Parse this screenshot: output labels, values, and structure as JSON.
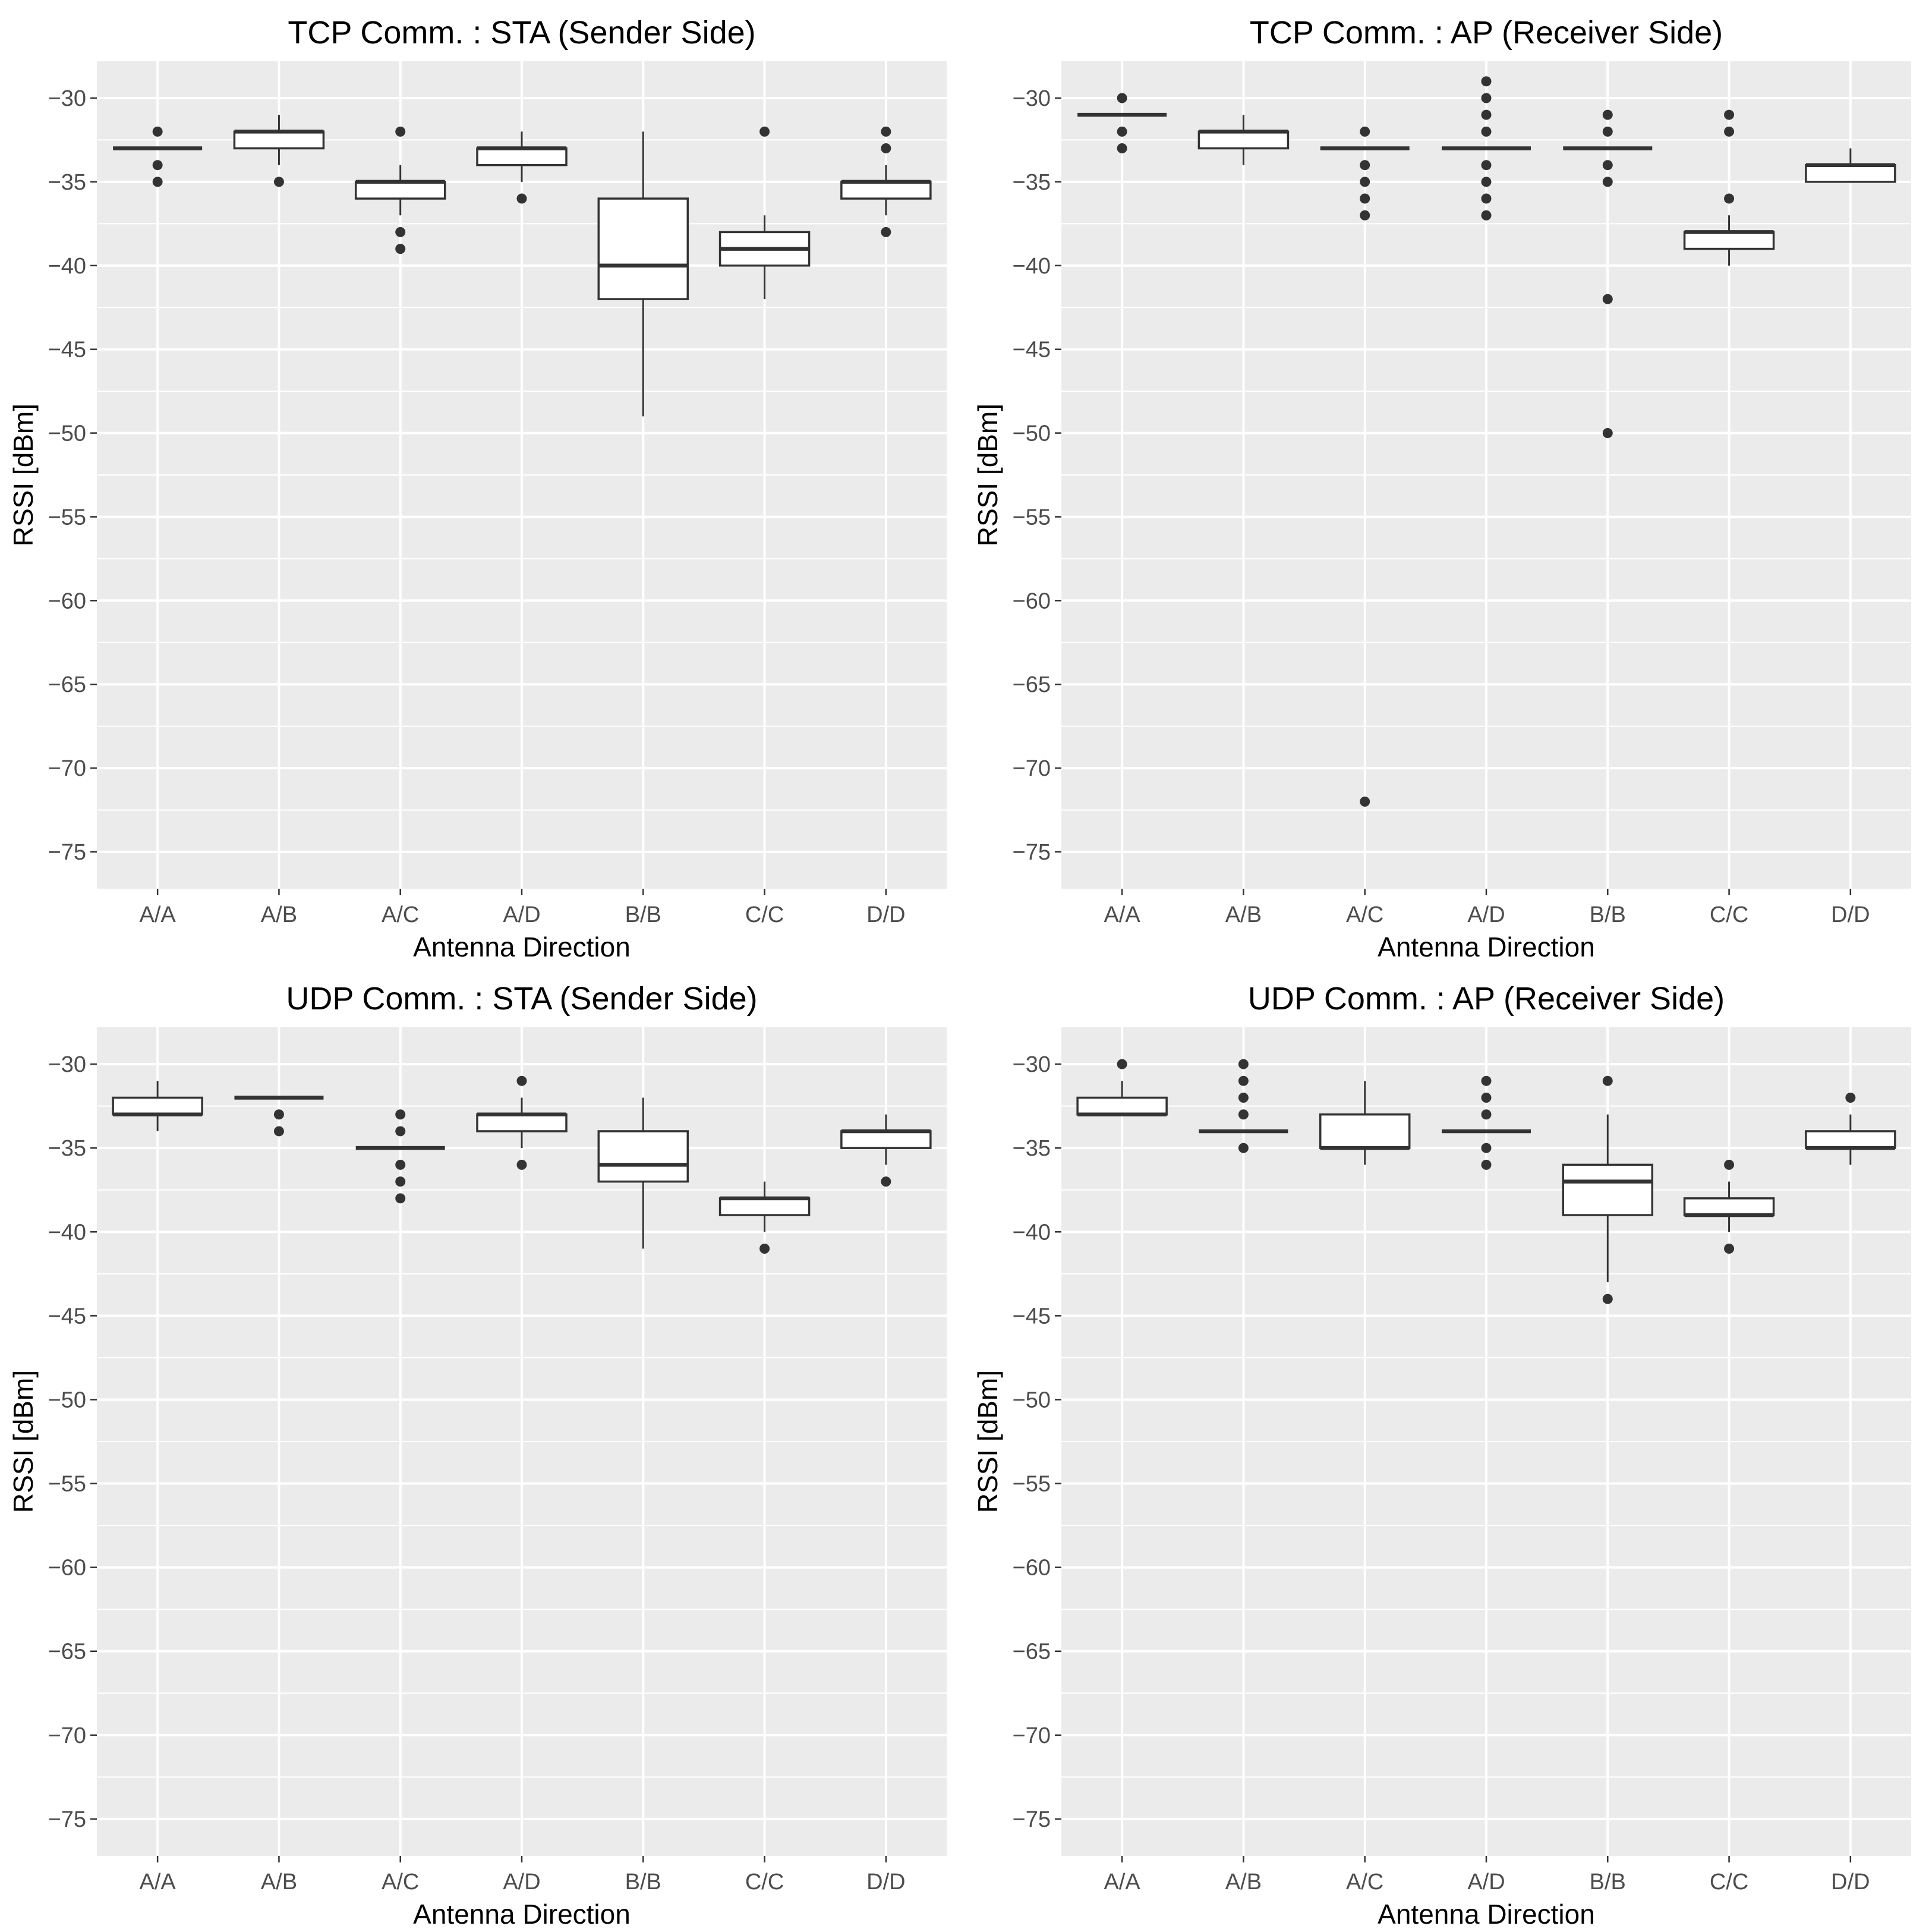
{
  "chart_data": [
    {
      "type": "boxplot",
      "title": "TCP Comm. : STA (Sender Side)",
      "xlabel": "Antenna Direction",
      "ylabel": "RSSI [dBm]",
      "ylim": [
        -77.2,
        -27.8
      ],
      "yticks": [
        -30,
        -35,
        -40,
        -45,
        -50,
        -55,
        -60,
        -65,
        -70,
        -75
      ],
      "ytick_labels": [
        "−30",
        "−35",
        "−40",
        "−45",
        "−50",
        "−55",
        "−60",
        "−65",
        "−70",
        "−75"
      ],
      "categories": [
        "A/A",
        "A/B",
        "A/C",
        "A/D",
        "B/B",
        "C/C",
        "D/D"
      ],
      "boxes": [
        {
          "q1": -33,
          "median": -33,
          "q3": -33,
          "whisker_low": -33,
          "whisker_high": -33,
          "outliers": [
            -32,
            -34,
            -35
          ]
        },
        {
          "q1": -33,
          "median": -32,
          "q3": -32,
          "whisker_low": -34,
          "whisker_high": -31,
          "outliers": [
            -35
          ]
        },
        {
          "q1": -36,
          "median": -35,
          "q3": -35,
          "whisker_low": -37,
          "whisker_high": -34,
          "outliers": [
            -32,
            -38,
            -39
          ]
        },
        {
          "q1": -34,
          "median": -33,
          "q3": -33,
          "whisker_low": -35,
          "whisker_high": -32,
          "outliers": [
            -36
          ]
        },
        {
          "q1": -42,
          "median": -40,
          "q3": -36,
          "whisker_low": -49,
          "whisker_high": -32,
          "outliers": []
        },
        {
          "q1": -40,
          "median": -39,
          "q3": -38,
          "whisker_low": -42,
          "whisker_high": -37,
          "outliers": [
            -32
          ]
        },
        {
          "q1": -36,
          "median": -35,
          "q3": -35,
          "whisker_low": -37,
          "whisker_high": -34,
          "outliers": [
            -32,
            -33,
            -38
          ]
        }
      ]
    },
    {
      "type": "boxplot",
      "title": "TCP Comm. : AP (Receiver Side)",
      "xlabel": "Antenna Direction",
      "ylabel": "RSSI [dBm]",
      "ylim": [
        -77.2,
        -27.8
      ],
      "yticks": [
        -30,
        -35,
        -40,
        -45,
        -50,
        -55,
        -60,
        -65,
        -70,
        -75
      ],
      "ytick_labels": [
        "−30",
        "−35",
        "−40",
        "−45",
        "−50",
        "−55",
        "−60",
        "−65",
        "−70",
        "−75"
      ],
      "categories": [
        "A/A",
        "A/B",
        "A/C",
        "A/D",
        "B/B",
        "C/C",
        "D/D"
      ],
      "boxes": [
        {
          "q1": -31,
          "median": -31,
          "q3": -31,
          "whisker_low": -31,
          "whisker_high": -31,
          "outliers": [
            -30,
            -32,
            -33
          ]
        },
        {
          "q1": -33,
          "median": -32,
          "q3": -32,
          "whisker_low": -34,
          "whisker_high": -31,
          "outliers": []
        },
        {
          "q1": -33,
          "median": -33,
          "q3": -33,
          "whisker_low": -33,
          "whisker_high": -33,
          "outliers": [
            -32,
            -34,
            -35,
            -36,
            -37,
            -72
          ]
        },
        {
          "q1": -33,
          "median": -33,
          "q3": -33,
          "whisker_low": -33,
          "whisker_high": -33,
          "outliers": [
            -29,
            -30,
            -31,
            -32,
            -34,
            -35,
            -36,
            -37
          ]
        },
        {
          "q1": -33,
          "median": -33,
          "q3": -33,
          "whisker_low": -33,
          "whisker_high": -33,
          "outliers": [
            -31,
            -32,
            -34,
            -35,
            -42,
            -50
          ]
        },
        {
          "q1": -39,
          "median": -38,
          "q3": -38,
          "whisker_low": -40,
          "whisker_high": -37,
          "outliers": [
            -31,
            -32,
            -36
          ]
        },
        {
          "q1": -35,
          "median": -34,
          "q3": -34,
          "whisker_low": -35,
          "whisker_high": -33,
          "outliers": []
        }
      ]
    },
    {
      "type": "boxplot",
      "title": "UDP Comm. : STA (Sender Side)",
      "xlabel": "Antenna Direction",
      "ylabel": "RSSI [dBm]",
      "ylim": [
        -77.2,
        -27.8
      ],
      "yticks": [
        -30,
        -35,
        -40,
        -45,
        -50,
        -55,
        -60,
        -65,
        -70,
        -75
      ],
      "ytick_labels": [
        "−30",
        "−35",
        "−40",
        "−45",
        "−50",
        "−55",
        "−60",
        "−65",
        "−70",
        "−75"
      ],
      "categories": [
        "A/A",
        "A/B",
        "A/C",
        "A/D",
        "B/B",
        "C/C",
        "D/D"
      ],
      "boxes": [
        {
          "q1": -33,
          "median": -33,
          "q3": -32,
          "whisker_low": -34,
          "whisker_high": -31,
          "outliers": []
        },
        {
          "q1": -32,
          "median": -32,
          "q3": -32,
          "whisker_low": -32,
          "whisker_high": -32,
          "outliers": [
            -33,
            -34
          ]
        },
        {
          "q1": -35,
          "median": -35,
          "q3": -35,
          "whisker_low": -35,
          "whisker_high": -35,
          "outliers": [
            -33,
            -34,
            -36,
            -37,
            -38
          ]
        },
        {
          "q1": -34,
          "median": -33,
          "q3": -33,
          "whisker_low": -35,
          "whisker_high": -32,
          "outliers": [
            -31,
            -36
          ]
        },
        {
          "q1": -37,
          "median": -36,
          "q3": -34,
          "whisker_low": -41,
          "whisker_high": -32,
          "outliers": []
        },
        {
          "q1": -39,
          "median": -38,
          "q3": -38,
          "whisker_low": -40,
          "whisker_high": -37,
          "outliers": [
            -41
          ]
        },
        {
          "q1": -35,
          "median": -34,
          "q3": -34,
          "whisker_low": -36,
          "whisker_high": -33,
          "outliers": [
            -37
          ]
        }
      ]
    },
    {
      "type": "boxplot",
      "title": "UDP Comm. : AP (Receiver Side)",
      "xlabel": "Antenna Direction",
      "ylabel": "RSSI [dBm]",
      "ylim": [
        -77.2,
        -27.8
      ],
      "yticks": [
        -30,
        -35,
        -40,
        -45,
        -50,
        -55,
        -60,
        -65,
        -70,
        -75
      ],
      "ytick_labels": [
        "−30",
        "−35",
        "−40",
        "−45",
        "−50",
        "−55",
        "−60",
        "−65",
        "−70",
        "−75"
      ],
      "categories": [
        "A/A",
        "A/B",
        "A/C",
        "A/D",
        "B/B",
        "C/C",
        "D/D"
      ],
      "boxes": [
        {
          "q1": -33,
          "median": -33,
          "q3": -32,
          "whisker_low": -33,
          "whisker_high": -31,
          "outliers": [
            -30
          ]
        },
        {
          "q1": -34,
          "median": -34,
          "q3": -34,
          "whisker_low": -34,
          "whisker_high": -34,
          "outliers": [
            -30,
            -31,
            -32,
            -33,
            -35
          ]
        },
        {
          "q1": -35,
          "median": -35,
          "q3": -33,
          "whisker_low": -36,
          "whisker_high": -31,
          "outliers": []
        },
        {
          "q1": -34,
          "median": -34,
          "q3": -34,
          "whisker_low": -34,
          "whisker_high": -34,
          "outliers": [
            -31,
            -32,
            -33,
            -35,
            -36
          ]
        },
        {
          "q1": -39,
          "median": -37,
          "q3": -36,
          "whisker_low": -43,
          "whisker_high": -33,
          "outliers": [
            -31,
            -44
          ]
        },
        {
          "q1": -39,
          "median": -39,
          "q3": -38,
          "whisker_low": -40,
          "whisker_high": -37,
          "outliers": [
            -36,
            -41
          ]
        },
        {
          "q1": -35,
          "median": -35,
          "q3": -34,
          "whisker_low": -36,
          "whisker_high": -33,
          "outliers": [
            -32
          ]
        }
      ]
    }
  ]
}
